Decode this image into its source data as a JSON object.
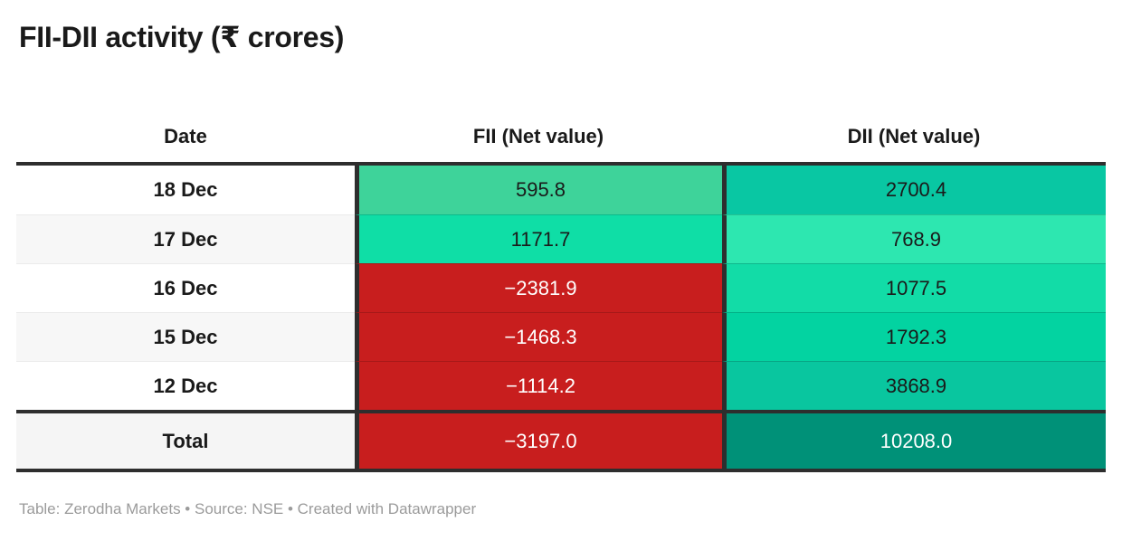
{
  "title": "FII-DII activity (₹ crores)",
  "footer": "Table: Zerodha Markets • Source: NSE • Created with Datawrapper",
  "table": {
    "columns": [
      "Date",
      "FII (Net value)",
      "DII (Net value)"
    ],
    "rows": [
      {
        "date": "18 Dec",
        "fii": "595.8",
        "dii": "2700.4",
        "row_bg": "#ffffff",
        "fii_bg": "#3ed39a",
        "fii_fg": "#1a1a1a",
        "dii_bg": "#09c7a3",
        "dii_fg": "#1a1a1a"
      },
      {
        "date": "17 Dec",
        "fii": "1171.7",
        "dii": "768.9",
        "row_bg": "#f7f7f7",
        "fii_bg": "#0fdea6",
        "fii_fg": "#1a1a1a",
        "dii_bg": "#2de7b0",
        "dii_fg": "#1a1a1a"
      },
      {
        "date": "16 Dec",
        "fii": "−2381.9",
        "dii": "1077.5",
        "row_bg": "#ffffff",
        "fii_bg": "#c81e1e",
        "fii_fg": "#ffffff",
        "dii_bg": "#12dca7",
        "dii_fg": "#1a1a1a"
      },
      {
        "date": "15 Dec",
        "fii": "−1468.3",
        "dii": "1792.3",
        "row_bg": "#f7f7f7",
        "fii_bg": "#c81e1e",
        "fii_fg": "#ffffff",
        "dii_bg": "#03d3a1",
        "dii_fg": "#1a1a1a"
      },
      {
        "date": "12 Dec",
        "fii": "−1114.2",
        "dii": "3868.9",
        "row_bg": "#ffffff",
        "fii_bg": "#c81e1e",
        "fii_fg": "#ffffff",
        "dii_bg": "#09c69f",
        "dii_fg": "#1a1a1a"
      }
    ],
    "total": {
      "date": "Total",
      "fii": "−3197.0",
      "dii": "10208.0",
      "row_bg": "#f5f5f5",
      "fii_bg": "#c81e1e",
      "fii_fg": "#ffffff",
      "dii_bg": "#009178",
      "dii_fg": "#ffffff"
    }
  },
  "colors": {
    "border_dark": "#2e2e2e",
    "negative_red": "#c81e1e",
    "positive_green_scale": [
      "#2de7b0",
      "#12dca7",
      "#0fdea6",
      "#03d3a1",
      "#09c69f",
      "#09c7a3",
      "#3ed39a",
      "#009178"
    ],
    "footer_gray": "#9b9b9b"
  },
  "chart_data": {
    "type": "table",
    "title": "FII-DII activity (₹ crores)",
    "columns": [
      "Date",
      "FII (Net value)",
      "DII (Net value)"
    ],
    "categories": [
      "18 Dec",
      "17 Dec",
      "16 Dec",
      "15 Dec",
      "12 Dec"
    ],
    "series": [
      {
        "name": "FII (Net value)",
        "values": [
          595.8,
          1171.7,
          -2381.9,
          -1468.3,
          -1114.2
        ],
        "total": -3197.0
      },
      {
        "name": "DII (Net value)",
        "values": [
          2700.4,
          768.9,
          1077.5,
          1792.3,
          3868.9
        ],
        "total": 10208.0
      }
    ],
    "notes": "Cells color-coded: red for negative values (white text), green/teal scale for positive values; totals row darker."
  }
}
